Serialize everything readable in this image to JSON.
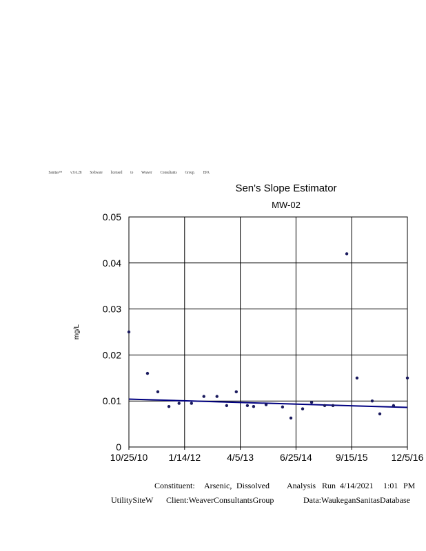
{
  "header_words": [
    "Sanitas™",
    "v.9.6.28",
    "Software",
    "licensed",
    "to",
    "Weaver",
    "Consultants",
    "Group.",
    "EPA"
  ],
  "chart_data": {
    "type": "scatter",
    "title": "Sen's Slope Estimator",
    "subtitle": "MW-02",
    "xlabel": "",
    "ylabel": "mg/L",
    "ylim": [
      0,
      0.05
    ],
    "yticks": [
      "0",
      "0.01",
      "0.02",
      "0.03",
      "0.04",
      "0.05"
    ],
    "xlim": [
      "2010-10-25",
      "2016-12-05"
    ],
    "xticks": [
      "10/25/10",
      "1/14/12",
      "4/5/13",
      "6/25/14",
      "9/15/15",
      "12/5/16"
    ],
    "grid": true,
    "point_color": "#1a1a5e",
    "trend_color": "#000080",
    "points": [
      {
        "x": "2010-10-25",
        "y": 0.025
      },
      {
        "x": "2011-03-23",
        "y": 0.016
      },
      {
        "x": "2011-06-14",
        "y": 0.012
      },
      {
        "x": "2011-09-11",
        "y": 0.0088
      },
      {
        "x": "2011-12-01",
        "y": 0.0095
      },
      {
        "x": "2012-03-10",
        "y": 0.0095
      },
      {
        "x": "2012-06-17",
        "y": 0.011
      },
      {
        "x": "2012-09-30",
        "y": 0.011
      },
      {
        "x": "2012-12-17",
        "y": 0.009
      },
      {
        "x": "2013-03-04",
        "y": 0.012
      },
      {
        "x": "2013-06-01",
        "y": 0.009
      },
      {
        "x": "2013-07-21",
        "y": 0.0088
      },
      {
        "x": "2013-10-29",
        "y": 0.0092
      },
      {
        "x": "2014-03-10",
        "y": 0.0087
      },
      {
        "x": "2014-05-16",
        "y": 0.0063
      },
      {
        "x": "2014-08-18",
        "y": 0.0083
      },
      {
        "x": "2014-10-29",
        "y": 0.0097
      },
      {
        "x": "2015-02-11",
        "y": 0.009
      },
      {
        "x": "2015-04-18",
        "y": 0.009
      },
      {
        "x": "2015-08-07",
        "y": 0.042
      },
      {
        "x": "2015-10-28",
        "y": 0.015
      },
      {
        "x": "2016-02-27",
        "y": 0.01
      },
      {
        "x": "2016-04-28",
        "y": 0.0072
      },
      {
        "x": "2016-08-16",
        "y": 0.009
      },
      {
        "x": "2016-12-05",
        "y": 0.015
      }
    ],
    "trend_line": [
      {
        "x": "2010-10-25",
        "y": 0.0104
      },
      {
        "x": "2016-12-05",
        "y": 0.0086
      }
    ]
  },
  "footer": {
    "constituent_label": "Constituent:",
    "constituent_words": [
      "Arsenic,",
      "Dissolved"
    ],
    "analysis_words": [
      "Analysis",
      "Run"
    ],
    "run_date": "4/14/2021",
    "run_time": "1:01",
    "run_ampm": "PM",
    "site": "UtilitySiteW",
    "client": "Client:WeaverConsultantsGroup",
    "data_source": "Data:WaukeganSanitasDatabase"
  }
}
